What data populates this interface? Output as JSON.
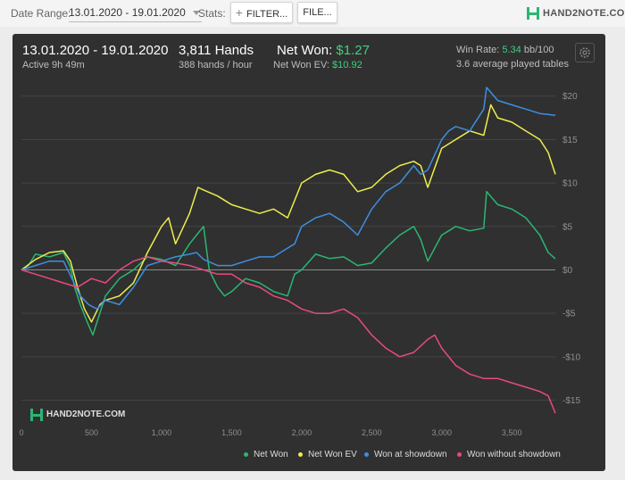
{
  "toolbar": {
    "date_range_label": "Date Range:",
    "date_range_value": "13.01.2020 - 19.01.2020",
    "stats_label": "Stats:",
    "filter_button": "FILTER...",
    "file_button": "FILE..."
  },
  "brand": {
    "logo_text": "HAND2NOTE.COM",
    "watermark_text": "HAND2NOTE.COM"
  },
  "summary": {
    "date_range": "13.01.2020 - 19.01.2020",
    "active": "Active 9h 49m",
    "hands": "3,811 Hands",
    "hands_rate": "388 hands / hour",
    "net_won_label": "Net Won:",
    "net_won_value": "$1.27",
    "net_won_ev_label": "Net Won  EV:",
    "net_won_ev_value": "$10.92",
    "win_rate_label": "Win Rate:",
    "win_rate_value": "5.34",
    "win_rate_unit": "bb/100",
    "avg_tables": "3.6 average played tables"
  },
  "colors": {
    "net_won": "#2bb673",
    "net_won_ev": "#eded4d",
    "won_at_showdown": "#3d8fe0",
    "won_without_showdown": "#e84a7f",
    "panel_bg": "#303030"
  },
  "chart_data": {
    "type": "line",
    "xlim": [
      0,
      3811
    ],
    "ylim": [
      -17,
      21
    ],
    "x_ticks": [
      0,
      500,
      1000,
      1500,
      2000,
      2500,
      3000,
      3500
    ],
    "x_tick_labels": [
      "0",
      "500",
      "1,000",
      "1,500",
      "2,000",
      "2,500",
      "3,000",
      "3,500"
    ],
    "y_ticks": [
      20,
      15,
      10,
      5,
      0,
      -5,
      -10,
      -15
    ],
    "y_tick_labels": [
      "$20",
      "$15",
      "$10",
      "$5",
      "$0",
      "-$5",
      "-$10",
      "-$15"
    ],
    "grid": true,
    "legend_position": "bottom-right",
    "series": [
      {
        "name": "Net Won",
        "color": "#2bb673",
        "points": [
          [
            0,
            0
          ],
          [
            50,
            0.5
          ],
          [
            100,
            1.8
          ],
          [
            200,
            1.5
          ],
          [
            300,
            2.0
          ],
          [
            350,
            0.3
          ],
          [
            380,
            -2
          ],
          [
            420,
            -4
          ],
          [
            470,
            -6
          ],
          [
            510,
            -7.5
          ],
          [
            540,
            -6
          ],
          [
            600,
            -3
          ],
          [
            700,
            -1
          ],
          [
            800,
            0
          ],
          [
            900,
            1.5
          ],
          [
            1000,
            1.2
          ],
          [
            1100,
            0.5
          ],
          [
            1200,
            3
          ],
          [
            1250,
            4
          ],
          [
            1300,
            5
          ],
          [
            1340,
            0
          ],
          [
            1400,
            -2
          ],
          [
            1450,
            -3
          ],
          [
            1500,
            -2.5
          ],
          [
            1600,
            -1
          ],
          [
            1700,
            -1.5
          ],
          [
            1800,
            -2.5
          ],
          [
            1900,
            -3
          ],
          [
            1950,
            -0.5
          ],
          [
            2000,
            0
          ],
          [
            2100,
            1.8
          ],
          [
            2200,
            1.3
          ],
          [
            2300,
            1.5
          ],
          [
            2400,
            0.5
          ],
          [
            2500,
            0.8
          ],
          [
            2600,
            2.5
          ],
          [
            2700,
            4
          ],
          [
            2800,
            5
          ],
          [
            2850,
            3.5
          ],
          [
            2900,
            1
          ],
          [
            3000,
            4
          ],
          [
            3050,
            4.5
          ],
          [
            3100,
            5
          ],
          [
            3200,
            4.5
          ],
          [
            3300,
            4.8
          ],
          [
            3320,
            9
          ],
          [
            3400,
            7.5
          ],
          [
            3500,
            7
          ],
          [
            3600,
            6
          ],
          [
            3700,
            4
          ],
          [
            3760,
            2
          ],
          [
            3811,
            1.27
          ]
        ]
      },
      {
        "name": "Net Won  EV",
        "color": "#eded4d",
        "points": [
          [
            0,
            0
          ],
          [
            100,
            1.2
          ],
          [
            200,
            2
          ],
          [
            300,
            2.2
          ],
          [
            350,
            1
          ],
          [
            400,
            -2
          ],
          [
            450,
            -4.5
          ],
          [
            500,
            -6
          ],
          [
            560,
            -4
          ],
          [
            600,
            -3.5
          ],
          [
            700,
            -3
          ],
          [
            800,
            -1.5
          ],
          [
            900,
            2
          ],
          [
            1000,
            5
          ],
          [
            1050,
            6
          ],
          [
            1100,
            3
          ],
          [
            1200,
            6.5
          ],
          [
            1260,
            9.5
          ],
          [
            1300,
            9.2
          ],
          [
            1400,
            8.5
          ],
          [
            1500,
            7.5
          ],
          [
            1600,
            7
          ],
          [
            1700,
            6.5
          ],
          [
            1800,
            7
          ],
          [
            1900,
            6
          ],
          [
            1950,
            8
          ],
          [
            2000,
            10
          ],
          [
            2100,
            11
          ],
          [
            2200,
            11.5
          ],
          [
            2300,
            11
          ],
          [
            2400,
            9
          ],
          [
            2500,
            9.5
          ],
          [
            2600,
            11
          ],
          [
            2700,
            12
          ],
          [
            2800,
            12.5
          ],
          [
            2850,
            12
          ],
          [
            2900,
            9.5
          ],
          [
            3000,
            14
          ],
          [
            3100,
            15
          ],
          [
            3200,
            16
          ],
          [
            3300,
            15.5
          ],
          [
            3350,
            19
          ],
          [
            3400,
            17.5
          ],
          [
            3500,
            17
          ],
          [
            3600,
            16
          ],
          [
            3700,
            15
          ],
          [
            3760,
            13.5
          ],
          [
            3811,
            11
          ]
        ]
      },
      {
        "name": "Won at showdown",
        "color": "#3d8fe0",
        "points": [
          [
            0,
            0
          ],
          [
            100,
            0.5
          ],
          [
            200,
            1
          ],
          [
            300,
            1
          ],
          [
            360,
            -1
          ],
          [
            420,
            -3
          ],
          [
            480,
            -4
          ],
          [
            540,
            -4.5
          ],
          [
            600,
            -3.5
          ],
          [
            700,
            -4
          ],
          [
            800,
            -2
          ],
          [
            900,
            0.5
          ],
          [
            1000,
            1
          ],
          [
            1100,
            1.5
          ],
          [
            1200,
            1.8
          ],
          [
            1250,
            2
          ],
          [
            1300,
            1.2
          ],
          [
            1400,
            0.5
          ],
          [
            1500,
            0.5
          ],
          [
            1600,
            1
          ],
          [
            1700,
            1.5
          ],
          [
            1800,
            1.5
          ],
          [
            1900,
            2.5
          ],
          [
            1950,
            3
          ],
          [
            2000,
            5
          ],
          [
            2100,
            6
          ],
          [
            2200,
            6.5
          ],
          [
            2300,
            5.5
          ],
          [
            2400,
            4
          ],
          [
            2500,
            7
          ],
          [
            2600,
            9
          ],
          [
            2700,
            10
          ],
          [
            2800,
            12
          ],
          [
            2850,
            11
          ],
          [
            2900,
            11.5
          ],
          [
            3000,
            15
          ],
          [
            3050,
            16
          ],
          [
            3100,
            16.5
          ],
          [
            3200,
            16
          ],
          [
            3300,
            18.5
          ],
          [
            3320,
            21
          ],
          [
            3400,
            19.5
          ],
          [
            3500,
            19
          ],
          [
            3600,
            18.5
          ],
          [
            3700,
            18
          ],
          [
            3811,
            17.8
          ]
        ]
      },
      {
        "name": "Won without showdown",
        "color": "#e84a7f",
        "points": [
          [
            0,
            0
          ],
          [
            100,
            -0.5
          ],
          [
            200,
            -1
          ],
          [
            300,
            -1.5
          ],
          [
            400,
            -2
          ],
          [
            500,
            -1
          ],
          [
            600,
            -1.5
          ],
          [
            700,
            0
          ],
          [
            800,
            1
          ],
          [
            900,
            1.5
          ],
          [
            1000,
            1
          ],
          [
            1100,
            0.8
          ],
          [
            1200,
            0.5
          ],
          [
            1300,
            0
          ],
          [
            1400,
            -0.5
          ],
          [
            1500,
            -0.5
          ],
          [
            1600,
            -1.5
          ],
          [
            1700,
            -2
          ],
          [
            1800,
            -3
          ],
          [
            1900,
            -3.5
          ],
          [
            2000,
            -4.5
          ],
          [
            2100,
            -5
          ],
          [
            2200,
            -5
          ],
          [
            2300,
            -4.5
          ],
          [
            2400,
            -5.5
          ],
          [
            2500,
            -7.5
          ],
          [
            2600,
            -9
          ],
          [
            2700,
            -10
          ],
          [
            2800,
            -9.5
          ],
          [
            2900,
            -8
          ],
          [
            2950,
            -7.5
          ],
          [
            3000,
            -9
          ],
          [
            3100,
            -11
          ],
          [
            3200,
            -12
          ],
          [
            3300,
            -12.5
          ],
          [
            3400,
            -12.5
          ],
          [
            3500,
            -13
          ],
          [
            3600,
            -13.5
          ],
          [
            3700,
            -14
          ],
          [
            3760,
            -14.5
          ],
          [
            3811,
            -16.5
          ]
        ]
      }
    ]
  }
}
